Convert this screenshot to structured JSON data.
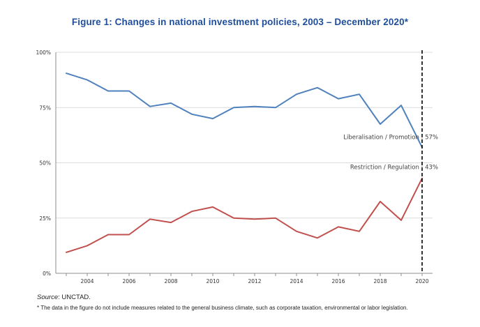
{
  "title": "Figure 1: Changes in national investment policies, 2003 – December 2020*",
  "colors": {
    "title": "#1f4e9a",
    "liberalisation": "#4f81bd",
    "restriction": "#c0504d",
    "grid": "#d0d0d0",
    "axis": "#8c8c8c",
    "marker_line": "#000000"
  },
  "chart_data": {
    "type": "line",
    "x": [
      2003,
      2004,
      2005,
      2006,
      2007,
      2008,
      2009,
      2010,
      2011,
      2012,
      2013,
      2014,
      2015,
      2016,
      2017,
      2018,
      2019,
      2020
    ],
    "series": [
      {
        "name": "Liberalisation / Promotion",
        "label": "Liberalisation / Promotion : 57%",
        "color": "#4f81bd",
        "values": [
          90.5,
          87.5,
          82.5,
          82.5,
          75.5,
          77,
          72,
          70,
          75,
          75.5,
          75,
          81,
          84,
          79,
          81,
          67.5,
          76,
          57
        ]
      },
      {
        "name": "Restriction / Regulation",
        "label": "Restriction / Regulation : 43%",
        "color": "#c0504d",
        "values": [
          9.5,
          12.5,
          17.5,
          17.5,
          24.5,
          23,
          28,
          30,
          25,
          24.5,
          25,
          19,
          16,
          21,
          19,
          32.5,
          24,
          43
        ]
      }
    ],
    "x_ticks": [
      2004,
      2006,
      2008,
      2010,
      2012,
      2014,
      2016,
      2018,
      2020
    ],
    "x_tick_labels": [
      "2004",
      "2006",
      "2008",
      "2010",
      "2012",
      "2014",
      "2016",
      "2018",
      "2020"
    ],
    "xlim": [
      2002.5,
      2020.5
    ],
    "y_ticks": [
      0,
      25,
      50,
      75,
      100
    ],
    "y_tick_labels": [
      "0%",
      "25%",
      "50%",
      "75%",
      "100%"
    ],
    "ylim": [
      0,
      100
    ],
    "vertical_marker_x": 2020,
    "grid": true,
    "xlabel": "",
    "ylabel": ""
  },
  "source": {
    "label": "Source",
    "text": ": UNCTAD."
  },
  "footnote": "* The data in the figure do not include measures related to the general business climate, such as corporate taxation, environmental or labor legislation."
}
